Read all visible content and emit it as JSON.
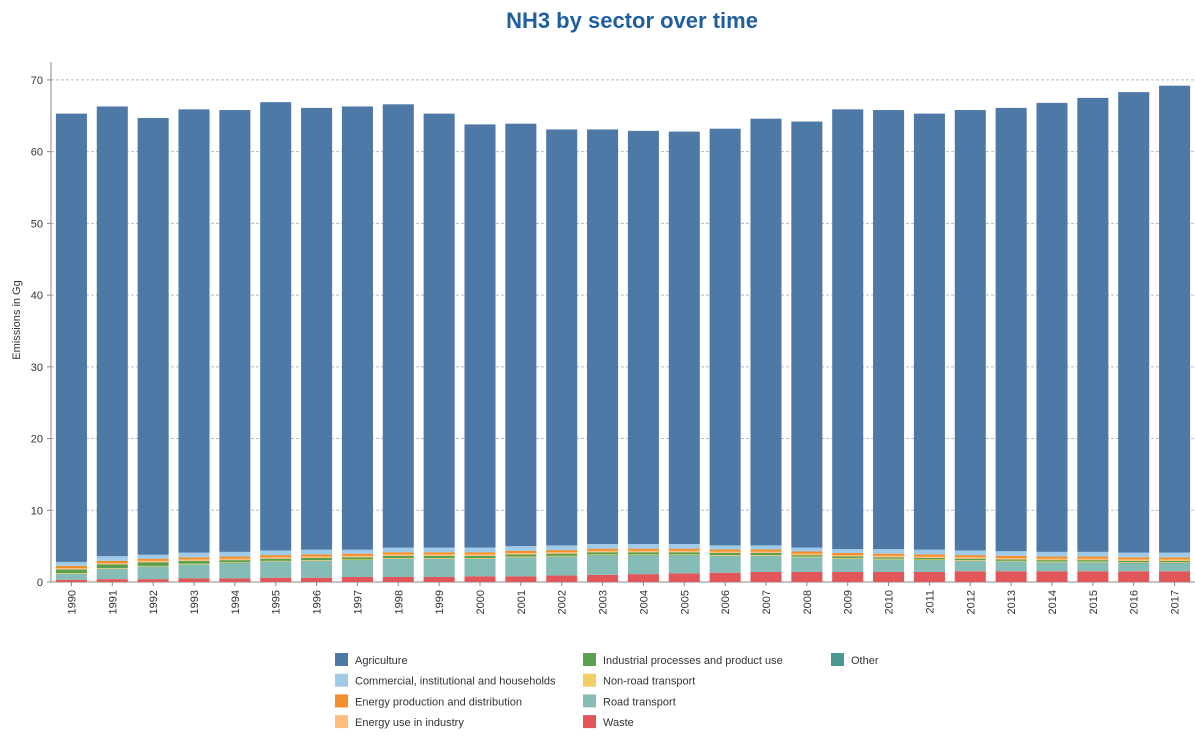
{
  "chart_data": {
    "type": "stacked_bar",
    "title": "NH3 by sector over time",
    "y_label": "Emissions in Gg",
    "categories": [
      "1990",
      "1991",
      "1992",
      "1993",
      "1994",
      "1995",
      "1996",
      "1997",
      "1998",
      "1999",
      "2000",
      "2001",
      "2002",
      "2003",
      "2004",
      "2005",
      "2006",
      "2007",
      "2008",
      "2009",
      "2010",
      "2011",
      "2012",
      "2013",
      "2014",
      "2015",
      "2016",
      "2017"
    ],
    "series": [
      {
        "name": "Agriculture",
        "color": "#4e79a7",
        "values": [
          62.5,
          62.7,
          60.9,
          61.8,
          61.6,
          62.5,
          61.6,
          61.8,
          61.8,
          60.5,
          59.0,
          58.9,
          58.0,
          57.8,
          57.6,
          57.5,
          58.1,
          59.5,
          59.4,
          61.3,
          61.2,
          60.8,
          61.4,
          61.8,
          62.6,
          63.3,
          64.2,
          65.1
        ]
      },
      {
        "name": "Commercial, institutional and households",
        "color": "#a0cbe8",
        "values": [
          0.55,
          0.65,
          0.55,
          0.65,
          0.65,
          0.65,
          0.65,
          0.55,
          0.65,
          0.65,
          0.65,
          0.65,
          0.65,
          0.65,
          0.65,
          0.65,
          0.55,
          0.55,
          0.55,
          0.55,
          0.65,
          0.65,
          0.65,
          0.65,
          0.65,
          0.65,
          0.65,
          0.65
        ]
      },
      {
        "name": "Energy production and distribution",
        "color": "#f28e2b",
        "values": [
          0.3,
          0.3,
          0.3,
          0.3,
          0.3,
          0.3,
          0.3,
          0.3,
          0.3,
          0.3,
          0.3,
          0.3,
          0.3,
          0.3,
          0.3,
          0.3,
          0.3,
          0.3,
          0.3,
          0.3,
          0.3,
          0.3,
          0.3,
          0.3,
          0.3,
          0.3,
          0.3,
          0.3
        ]
      },
      {
        "name": "Energy use in industry",
        "color": "#ffbe7d",
        "values": [
          0.2,
          0.2,
          0.2,
          0.2,
          0.2,
          0.2,
          0.2,
          0.2,
          0.2,
          0.2,
          0.2,
          0.2,
          0.2,
          0.2,
          0.2,
          0.2,
          0.2,
          0.2,
          0.2,
          0.2,
          0.2,
          0.2,
          0.2,
          0.2,
          0.2,
          0.2,
          0.2,
          0.2
        ]
      },
      {
        "name": "Industrial processes and product use",
        "color": "#59a14f",
        "values": [
          0.5,
          0.5,
          0.5,
          0.4,
          0.3,
          0.3,
          0.3,
          0.3,
          0.3,
          0.3,
          0.3,
          0.3,
          0.3,
          0.3,
          0.3,
          0.3,
          0.3,
          0.3,
          0.2,
          0.2,
          0.2,
          0.2,
          0.2,
          0.2,
          0.2,
          0.2,
          0.2,
          0.2
        ]
      },
      {
        "name": "Non-road transport",
        "color": "#f1ce63",
        "values": [
          0.1,
          0.1,
          0.1,
          0.1,
          0.1,
          0.1,
          0.1,
          0.1,
          0.1,
          0.1,
          0.1,
          0.1,
          0.1,
          0.1,
          0.1,
          0.1,
          0.1,
          0.1,
          0.1,
          0.1,
          0.1,
          0.1,
          0.1,
          0.1,
          0.1,
          0.1,
          0.1,
          0.1
        ]
      },
      {
        "name": "Road transport",
        "color": "#86bcb6",
        "values": [
          0.8,
          1.4,
          1.7,
          1.9,
          2.1,
          2.2,
          2.3,
          2.3,
          2.5,
          2.5,
          2.4,
          2.6,
          2.6,
          2.7,
          2.6,
          2.5,
          2.3,
          2.2,
          2.0,
          1.8,
          1.7,
          1.6,
          1.4,
          1.3,
          1.2,
          1.2,
          1.1,
          1.1
        ]
      },
      {
        "name": "Waste",
        "color": "#e15759",
        "values": [
          0.3,
          0.4,
          0.4,
          0.5,
          0.5,
          0.6,
          0.6,
          0.7,
          0.7,
          0.7,
          0.8,
          0.8,
          0.9,
          1.0,
          1.1,
          1.2,
          1.3,
          1.4,
          1.4,
          1.4,
          1.4,
          1.4,
          1.5,
          1.5,
          1.5,
          1.5,
          1.5,
          1.5
        ]
      },
      {
        "name": "Other",
        "color": "#499894",
        "values": [
          0.05,
          0.05,
          0.05,
          0.05,
          0.05,
          0.05,
          0.05,
          0.05,
          0.05,
          0.05,
          0.05,
          0.05,
          0.05,
          0.05,
          0.05,
          0.05,
          0.05,
          0.05,
          0.05,
          0.05,
          0.05,
          0.05,
          0.05,
          0.05,
          0.05,
          0.05,
          0.05,
          0.05
        ]
      }
    ],
    "ylim": [
      0,
      72.5
    ],
    "yticks": [
      0,
      10,
      20,
      30,
      40,
      50,
      60,
      70
    ],
    "grid": true
  }
}
